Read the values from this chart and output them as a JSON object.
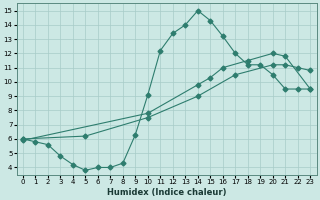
{
  "xlabel": "Humidex (Indice chaleur)",
  "bg_color": "#cce8e4",
  "line_color": "#2e7d6e",
  "grid_color": "#a8ccc8",
  "xlim": [
    -0.5,
    23.5
  ],
  "ylim": [
    3.5,
    15.5
  ],
  "xticks": [
    0,
    1,
    2,
    3,
    4,
    5,
    6,
    7,
    8,
    9,
    10,
    11,
    12,
    13,
    14,
    15,
    16,
    17,
    18,
    19,
    20,
    21,
    22,
    23
  ],
  "yticks": [
    4,
    5,
    6,
    7,
    8,
    9,
    10,
    11,
    12,
    13,
    14,
    15
  ],
  "line1_x": [
    0,
    1,
    2,
    3,
    4,
    5,
    6,
    7,
    8,
    9,
    10,
    11,
    12,
    13,
    14,
    15,
    16,
    17,
    18,
    19,
    20,
    21,
    22,
    23
  ],
  "line1_y": [
    6.0,
    5.8,
    5.6,
    4.8,
    4.2,
    3.8,
    4.0,
    4.0,
    4.3,
    6.3,
    9.1,
    12.2,
    13.4,
    14.0,
    15.0,
    14.3,
    13.2,
    12.0,
    11.2,
    11.2,
    10.5,
    9.5,
    9.5,
    9.5
  ],
  "line2_x": [
    0,
    10,
    14,
    15,
    16,
    18,
    20,
    21,
    23
  ],
  "line2_y": [
    5.9,
    7.8,
    9.8,
    10.3,
    11.0,
    11.5,
    12.0,
    11.8,
    9.5
  ],
  "line3_x": [
    0,
    5,
    10,
    14,
    17,
    20,
    21,
    22,
    23
  ],
  "line3_y": [
    6.0,
    6.2,
    7.5,
    9.0,
    10.5,
    11.2,
    11.2,
    11.0,
    10.8
  ],
  "marker": "D",
  "markersize": 2.5,
  "linewidth": 0.8
}
